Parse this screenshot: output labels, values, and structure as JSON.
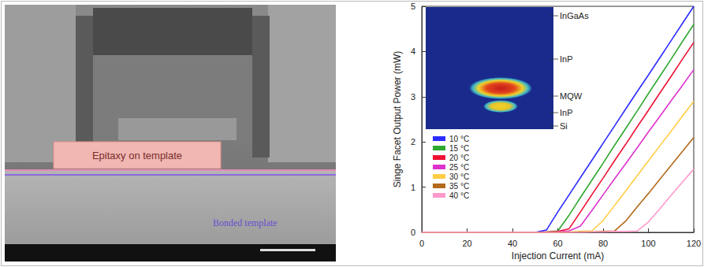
{
  "sem_image": {
    "labels": [
      "Epitaxy on template",
      "Bonded template"
    ]
  },
  "chart_data": {
    "type": "line",
    "xlabel": "Injection Current (mA)",
    "ylabel": "Singe Facet Output Power (mW)",
    "x": [
      0,
      20,
      40,
      50,
      55,
      60,
      65,
      70,
      75,
      80,
      85,
      90,
      95,
      100,
      105,
      110,
      115,
      120
    ],
    "series": [
      {
        "name": "10 °C",
        "color": "#2b2bff",
        "values": [
          0,
          0,
          0,
          0,
          0.05,
          0.45,
          0.83,
          1.21,
          1.59,
          1.97,
          2.35,
          2.73,
          3.11,
          3.48,
          3.86,
          4.24,
          4.62,
          5.0
        ]
      },
      {
        "name": "15 °C",
        "color": "#2ea82e",
        "values": [
          0,
          0,
          0,
          0,
          0.01,
          0.03,
          0.38,
          0.77,
          1.15,
          1.53,
          1.92,
          2.3,
          2.68,
          3.07,
          3.45,
          3.83,
          4.22,
          4.6
        ]
      },
      {
        "name": "20 °C",
        "color": "#ee1133",
        "values": [
          0,
          0,
          0,
          0,
          0.01,
          0.02,
          0.08,
          0.45,
          0.83,
          1.2,
          1.58,
          1.95,
          2.33,
          2.7,
          3.08,
          3.45,
          3.83,
          4.2
        ]
      },
      {
        "name": "25 °C",
        "color": "#dd33cc",
        "values": [
          0,
          0,
          0,
          0,
          0,
          0.01,
          0.03,
          0.14,
          0.48,
          0.83,
          1.18,
          1.52,
          1.87,
          2.22,
          2.56,
          2.91,
          3.25,
          3.6
        ]
      },
      {
        "name": "30 °C",
        "color": "#ffcc44",
        "values": [
          0,
          0,
          0,
          0,
          0,
          0,
          0.01,
          0.02,
          0.03,
          0.26,
          0.59,
          0.92,
          1.25,
          1.58,
          1.91,
          2.24,
          2.57,
          2.9
        ]
      },
      {
        "name": "35 °C",
        "color": "#b36a1a",
        "values": [
          0,
          0,
          0,
          0,
          0,
          0,
          0,
          0.01,
          0.01,
          0.02,
          0.03,
          0.25,
          0.56,
          0.86,
          1.17,
          1.48,
          1.79,
          2.1
        ]
      },
      {
        "name": "40 °C",
        "color": "#ff99cc",
        "values": [
          0,
          0,
          0,
          0,
          0,
          0,
          0,
          0,
          0.01,
          0.01,
          0.02,
          0.02,
          0.03,
          0.23,
          0.52,
          0.82,
          1.11,
          1.4
        ]
      }
    ],
    "xlim": [
      0,
      120
    ],
    "xticks": [
      0,
      20,
      40,
      60,
      80,
      100,
      120
    ],
    "ylim": [
      0,
      5
    ],
    "yticks": [
      0,
      1,
      2,
      3,
      4,
      5
    ],
    "grid": false,
    "legend": "left",
    "annotations": [
      "InGaAs",
      "InP",
      "MQW",
      "InP",
      "Si"
    ]
  }
}
